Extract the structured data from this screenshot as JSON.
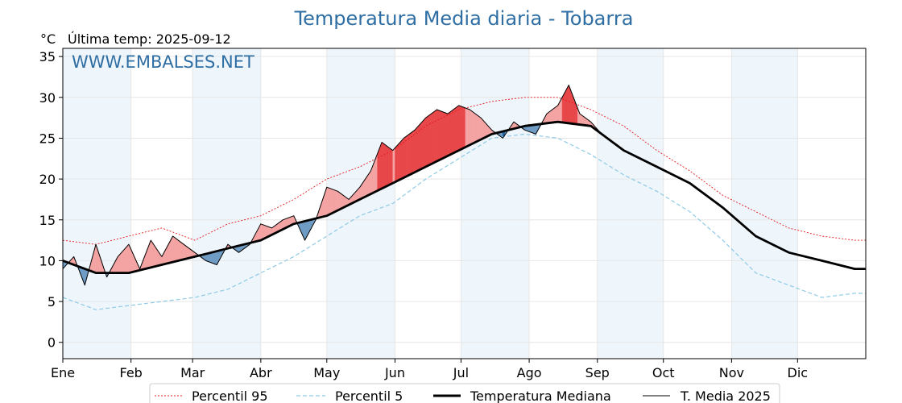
{
  "chart_data": {
    "type": "line",
    "title": "Temperatura Media diaria - Tobarra",
    "unit_label": "°C",
    "last_temp_label": "Última temp: 2025-09-12",
    "watermark": "WWW.EMBALSES.NET",
    "ylim": [
      -2,
      36
    ],
    "y_ticks": [
      0,
      5,
      10,
      15,
      20,
      25,
      30,
      35
    ],
    "x_range_days": [
      0,
      365
    ],
    "x_ticks": [
      {
        "day": 0,
        "label": "Ene"
      },
      {
        "day": 31,
        "label": "Feb"
      },
      {
        "day": 59,
        "label": "Mar"
      },
      {
        "day": 90,
        "label": "Abr"
      },
      {
        "day": 120,
        "label": "May"
      },
      {
        "day": 151,
        "label": "Jun"
      },
      {
        "day": 181,
        "label": "Jul"
      },
      {
        "day": 212,
        "label": "Ago"
      },
      {
        "day": 243,
        "label": "Sep"
      },
      {
        "day": 273,
        "label": "Oct"
      },
      {
        "day": 304,
        "label": "Nov"
      },
      {
        "day": 334,
        "label": "Dic"
      }
    ],
    "grid": true,
    "legend_position": "bottom",
    "colors": {
      "p95": "#e31a1c",
      "p5": "#8ecae6",
      "median": "#000000",
      "current": "#000000",
      "above_fill": "#f4a3a3",
      "above_strong": "#e8474a",
      "below_fill": "#6f9cc4",
      "below_strong": "#1f5f9a",
      "band": "#eef5fb",
      "title": "#2f6ea3"
    },
    "series": [
      {
        "name": "Percentil 95",
        "style": "dotted",
        "x": [
          0,
          15,
          30,
          45,
          60,
          75,
          90,
          105,
          120,
          135,
          150,
          165,
          180,
          195,
          210,
          225,
          240,
          255,
          270,
          285,
          300,
          315,
          330,
          345,
          360,
          365
        ],
        "values": [
          12.5,
          12.0,
          13.0,
          14.0,
          12.5,
          14.5,
          15.5,
          17.5,
          20.0,
          21.5,
          23.5,
          26.5,
          28.5,
          29.5,
          30.0,
          30.0,
          28.5,
          26.5,
          23.5,
          21.0,
          18.0,
          16.0,
          14.0,
          13.0,
          12.5,
          12.5
        ]
      },
      {
        "name": "Percentil 5",
        "style": "dashed",
        "x": [
          0,
          15,
          30,
          45,
          60,
          75,
          90,
          105,
          120,
          135,
          150,
          165,
          180,
          195,
          210,
          225,
          240,
          255,
          270,
          285,
          300,
          315,
          330,
          345,
          360,
          365
        ],
        "values": [
          5.5,
          4.0,
          4.5,
          5.0,
          5.5,
          6.5,
          8.5,
          10.5,
          13.0,
          15.5,
          17.0,
          20.0,
          22.5,
          25.0,
          25.5,
          25.0,
          23.0,
          20.5,
          18.5,
          16.0,
          12.5,
          8.5,
          7.0,
          5.5,
          6.0,
          6.0
        ]
      },
      {
        "name": "Temperatura Mediana",
        "style": "solid-thick",
        "x": [
          0,
          15,
          30,
          45,
          60,
          75,
          90,
          105,
          120,
          135,
          150,
          165,
          180,
          195,
          210,
          225,
          240,
          255,
          270,
          285,
          300,
          315,
          330,
          345,
          360,
          365
        ],
        "values": [
          10.0,
          8.5,
          8.5,
          9.5,
          10.5,
          11.5,
          12.5,
          14.5,
          15.5,
          17.5,
          19.5,
          21.5,
          23.5,
          25.5,
          26.5,
          27.0,
          26.5,
          23.5,
          21.5,
          19.5,
          16.5,
          13.0,
          11.0,
          10.0,
          9.0,
          9.0
        ]
      },
      {
        "name": "T. Media 2025",
        "style": "solid-thin",
        "x": [
          0,
          5,
          10,
          15,
          20,
          25,
          30,
          35,
          40,
          45,
          50,
          55,
          60,
          65,
          70,
          75,
          80,
          85,
          90,
          95,
          100,
          105,
          110,
          115,
          120,
          125,
          130,
          135,
          140,
          145,
          150,
          155,
          160,
          165,
          170,
          175,
          180,
          185,
          190,
          195,
          200,
          205,
          210,
          215,
          220,
          225,
          230,
          235,
          240,
          245,
          250,
          255
        ],
        "values": [
          9.0,
          10.5,
          7.0,
          12.0,
          8.0,
          10.5,
          12.0,
          9.0,
          12.5,
          10.5,
          13.0,
          12.0,
          11.0,
          10.0,
          9.5,
          12.0,
          11.0,
          12.0,
          14.5,
          14.0,
          15.0,
          15.5,
          12.5,
          15.0,
          19.0,
          18.5,
          17.5,
          19.0,
          21.0,
          24.5,
          23.5,
          25.0,
          26.0,
          27.5,
          28.5,
          28.0,
          29.0,
          28.5,
          27.5,
          26.0,
          25.0,
          27.0,
          26.0,
          25.5,
          28.0,
          29.0,
          31.5,
          28.0,
          27.0,
          25.5,
          24.5,
          23.5
        ]
      }
    ]
  },
  "legend": {
    "items": [
      {
        "label": "Percentil 95"
      },
      {
        "label": "Percentil 5"
      },
      {
        "label": "Temperatura Mediana"
      },
      {
        "label": "T. Media 2025"
      }
    ]
  }
}
